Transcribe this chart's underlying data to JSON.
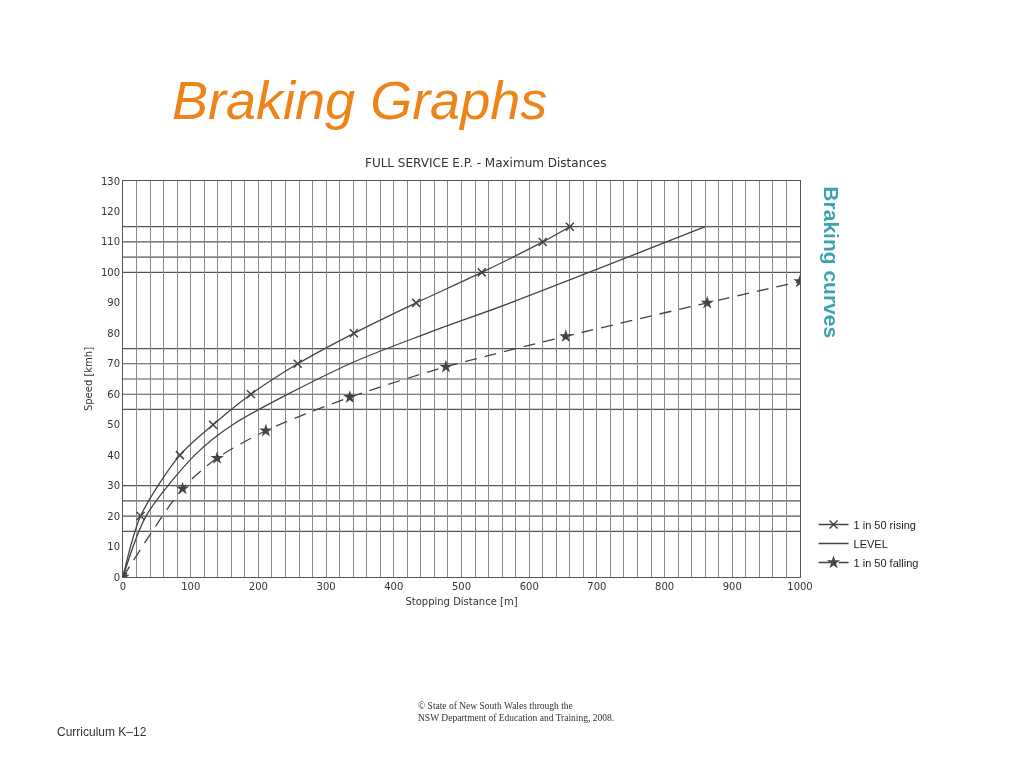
{
  "chart_data": {
    "type": "line",
    "title": "Braking Graphs",
    "subtitle": "FULL SERVICE E.P. - Maximum Distances",
    "xlabel": "Stopping Distance [m]",
    "ylabel": "Speed [kmh]",
    "series": [
      {
        "name": "1 in 50 rising",
        "color": "#444444",
        "marker": "cross",
        "line_style": "solid",
        "x": [
          0,
          26,
          84,
          133,
          189,
          258,
          341,
          433,
          530,
          620,
          660
        ],
        "values": [
          0,
          20,
          40,
          50,
          60,
          70,
          80,
          90,
          100,
          110,
          115
        ]
      },
      {
        "name": "LEVEL",
        "color": "#444444",
        "marker": "none",
        "line_style": "solid",
        "x": [
          0,
          34,
          106,
          162,
          335,
          449,
          572,
          860
        ],
        "values": [
          0,
          20,
          40,
          50,
          70,
          80,
          90,
          115
        ]
      },
      {
        "name": "1 in 50 falling",
        "color": "#444444",
        "marker": "star",
        "line_style": "dashed",
        "x": [
          0,
          88,
          139,
          211,
          335,
          477,
          654,
          863,
          1000
        ],
        "values": [
          0,
          29,
          39,
          48,
          59,
          69,
          79,
          90,
          97
        ]
      }
    ],
    "xlim": [
      0,
      1000
    ],
    "ylim": [
      0,
      130
    ],
    "xticks": [
      0,
      {
        "value": 20,
        "label": null
      },
      {
        "value": 40,
        "label": null
      },
      {
        "value": 60,
        "label": null
      },
      {
        "value": 80,
        "label": null
      },
      100,
      {
        "value": 120,
        "label": null
      },
      {
        "value": 140,
        "label": null
      },
      {
        "value": 160,
        "label": null
      },
      {
        "value": 180,
        "label": null
      },
      200,
      {
        "value": 220,
        "label": null
      },
      {
        "value": 240,
        "label": null
      },
      {
        "value": 260,
        "label": null
      },
      {
        "value": 280,
        "label": null
      },
      300,
      {
        "value": 320,
        "label": null
      },
      {
        "value": 340,
        "label": null
      },
      {
        "value": 360,
        "label": null
      },
      {
        "value": 380,
        "label": null
      },
      400,
      {
        "value": 420,
        "label": null
      },
      {
        "value": 440,
        "label": null
      },
      {
        "value": 460,
        "label": null
      },
      {
        "value": 480,
        "label": null
      },
      500,
      {
        "value": 520,
        "label": null
      },
      {
        "value": 540,
        "label": null
      },
      {
        "value": 560,
        "label": null
      },
      {
        "value": 580,
        "label": null
      },
      600,
      {
        "value": 620,
        "label": null
      },
      {
        "value": 640,
        "label": null
      },
      {
        "value": 660,
        "label": null
      },
      {
        "value": 680,
        "label": null
      },
      700,
      {
        "value": 720,
        "label": null
      },
      {
        "value": 740,
        "label": null
      },
      {
        "value": 760,
        "label": null
      },
      {
        "value": 780,
        "label": null
      },
      800,
      {
        "value": 820,
        "label": null
      },
      {
        "value": 840,
        "label": null
      },
      {
        "value": 860,
        "label": null
      },
      {
        "value": 880,
        "label": null
      },
      900,
      {
        "value": 920,
        "label": null
      },
      {
        "value": 940,
        "label": null
      },
      {
        "value": 960,
        "label": null
      },
      {
        "value": 980,
        "label": null
      },
      1000
    ],
    "yticks": [
      0,
      10,
      20,
      30,
      40,
      50,
      60,
      70,
      80,
      90,
      100,
      110,
      120,
      130
    ],
    "grid": "x",
    "legend": "right",
    "ref_lines": [
      {
        "axis": "y",
        "value": 15,
        "color": "#555555"
      },
      {
        "axis": "y",
        "value": 20,
        "color": "#555555"
      },
      {
        "axis": "y",
        "value": 25,
        "color": "#555555"
      },
      {
        "axis": "y",
        "value": 30,
        "color": "#555555"
      },
      {
        "axis": "y",
        "value": 55,
        "color": "#555555"
      },
      {
        "axis": "y",
        "value": 60,
        "color": "#555555"
      },
      {
        "axis": "y",
        "value": 65,
        "color": "#555555"
      },
      {
        "axis": "y",
        "value": 70,
        "color": "#555555"
      },
      {
        "axis": "y",
        "value": 75,
        "color": "#555555"
      },
      {
        "axis": "y",
        "value": 100,
        "color": "#555555"
      },
      {
        "axis": "y",
        "value": 105,
        "color": "#555555"
      },
      {
        "axis": "y",
        "value": 110,
        "color": "#555555"
      },
      {
        "axis": "y",
        "value": 115,
        "color": "#555555"
      }
    ],
    "annotations": [
      "Braking curves",
      "© State of New South Wales through the\nNSW Department of Education and Training, 2008.",
      "Curriculum K–12"
    ]
  }
}
